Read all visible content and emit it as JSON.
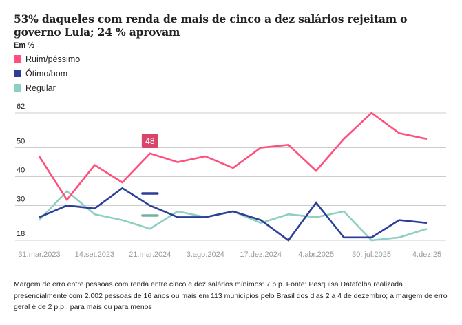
{
  "chart_data": {
    "type": "line",
    "title": "53% daqueles com renda de mais de cinco a dez salários rejeitam o governo Lula; 24 % aprovam",
    "unit_label": "Em %",
    "xlabel": "",
    "ylabel": "",
    "ylim": [
      18,
      62
    ],
    "y_ticks": [
      62,
      50,
      40,
      30,
      18
    ],
    "grid": true,
    "legend_position": "top-left",
    "x_tick_labels": [
      {
        "index": 0,
        "label": "31.mar.2023"
      },
      {
        "index": 2,
        "label": "14.set.2023"
      },
      {
        "index": 4,
        "label": "21.mar.2024"
      },
      {
        "index": 6,
        "label": "3.ago.2024"
      },
      {
        "index": 8,
        "label": "17.dez.2024"
      },
      {
        "index": 10,
        "label": "4.abr.2025"
      },
      {
        "index": 12,
        "label": "30. jul.2025"
      },
      {
        "index": 14,
        "label": "4.dez.25"
      }
    ],
    "point_count": 15,
    "series": [
      {
        "name": "Ruim/péssimo",
        "color": "#ff4f7b",
        "values": [
          47,
          32,
          44,
          38,
          48,
          45,
          47,
          43,
          50,
          51,
          42,
          53,
          62,
          55,
          53
        ]
      },
      {
        "name": "Ótimo/bom",
        "color": "#2b3f99",
        "values": [
          26,
          30,
          29,
          36,
          30,
          26,
          26,
          28,
          25,
          18,
          31,
          19,
          19,
          25,
          24
        ]
      },
      {
        "name": "Regular",
        "color": "#8fcfc3",
        "values": [
          25,
          35,
          27,
          25,
          22,
          28,
          26,
          28,
          24,
          27,
          26,
          28,
          18,
          19,
          22
        ]
      }
    ],
    "tooltip": {
      "index": 4,
      "value_label": "48",
      "box_color": "#d9456b",
      "marker_colors": [
        "#2b3f99",
        "#72b0a3"
      ]
    }
  },
  "footnote": "Margem de erro entre pessoas com renda entre cinco e dez salários mínimos: 7 p.p. Fonte: Pesquisa Datafolha realizada presencialmente com 2.002 pessoas de 16 anos ou mais em 113 municípios pelo Brasil dos dias 2 a 4 de dezembro; a margem de erro geral é de 2 p.p., para mais ou para menos"
}
